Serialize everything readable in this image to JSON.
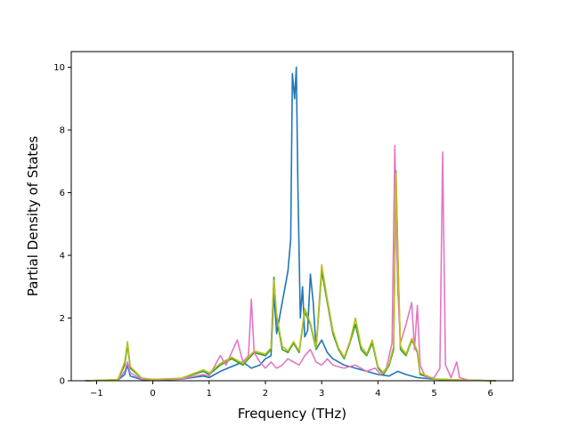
{
  "chart_data": {
    "type": "line",
    "xlabel": "Frequency (THz)",
    "ylabel": "Partial Density of States",
    "xlim": [
      -1.45,
      6.4
    ],
    "ylim": [
      0,
      10.5
    ],
    "xticks": [
      -1,
      0,
      1,
      2,
      3,
      4,
      5,
      6
    ],
    "yticks": [
      0,
      2,
      4,
      6,
      8,
      10
    ],
    "grid": false,
    "legend": "none",
    "series": [
      {
        "color": "#1f77b4",
        "points": [
          [
            -1.2,
            0
          ],
          [
            -0.62,
            0.02
          ],
          [
            -0.5,
            0.2
          ],
          [
            -0.45,
            0.5
          ],
          [
            -0.4,
            0.15
          ],
          [
            -0.2,
            0.04
          ],
          [
            0,
            0.02
          ],
          [
            0.5,
            0.05
          ],
          [
            0.9,
            0.15
          ],
          [
            1.0,
            0.1
          ],
          [
            1.2,
            0.3
          ],
          [
            1.4,
            0.45
          ],
          [
            1.6,
            0.6
          ],
          [
            1.75,
            0.4
          ],
          [
            1.9,
            0.5
          ],
          [
            2.0,
            0.7
          ],
          [
            2.1,
            0.8
          ],
          [
            2.15,
            2.8
          ],
          [
            2.2,
            1.5
          ],
          [
            2.3,
            2.5
          ],
          [
            2.35,
            3.0
          ],
          [
            2.4,
            3.5
          ],
          [
            2.45,
            4.5
          ],
          [
            2.48,
            9.8
          ],
          [
            2.52,
            9.0
          ],
          [
            2.55,
            10.0
          ],
          [
            2.58,
            6.0
          ],
          [
            2.62,
            2.0
          ],
          [
            2.66,
            3.0
          ],
          [
            2.7,
            1.4
          ],
          [
            2.75,
            1.6
          ],
          [
            2.8,
            3.4
          ],
          [
            2.85,
            2.5
          ],
          [
            2.9,
            1.0
          ],
          [
            3.0,
            1.3
          ],
          [
            3.1,
            0.9
          ],
          [
            3.2,
            0.7
          ],
          [
            3.4,
            0.5
          ],
          [
            3.6,
            0.4
          ],
          [
            3.8,
            0.3
          ],
          [
            4.0,
            0.2
          ],
          [
            4.2,
            0.15
          ],
          [
            4.35,
            0.3
          ],
          [
            4.5,
            0.2
          ],
          [
            4.7,
            0.1
          ],
          [
            5.0,
            0.05
          ],
          [
            5.5,
            0.02
          ],
          [
            6.1,
            0
          ]
        ]
      },
      {
        "color": "#2ca02c",
        "points": [
          [
            -1.2,
            0
          ],
          [
            -0.62,
            0.03
          ],
          [
            -0.5,
            0.5
          ],
          [
            -0.45,
            1.15
          ],
          [
            -0.4,
            0.4
          ],
          [
            -0.2,
            0.08
          ],
          [
            0,
            0.04
          ],
          [
            0.5,
            0.07
          ],
          [
            0.9,
            0.3
          ],
          [
            1.0,
            0.2
          ],
          [
            1.2,
            0.5
          ],
          [
            1.4,
            0.7
          ],
          [
            1.6,
            0.5
          ],
          [
            1.8,
            0.9
          ],
          [
            2.0,
            0.8
          ],
          [
            2.1,
            1.0
          ],
          [
            2.15,
            3.3
          ],
          [
            2.2,
            2.0
          ],
          [
            2.3,
            1.0
          ],
          [
            2.4,
            0.9
          ],
          [
            2.5,
            1.2
          ],
          [
            2.6,
            0.9
          ],
          [
            2.7,
            2.2
          ],
          [
            2.8,
            1.8
          ],
          [
            2.9,
            1.0
          ],
          [
            3.0,
            3.5
          ],
          [
            3.1,
            2.5
          ],
          [
            3.2,
            1.5
          ],
          [
            3.3,
            1.0
          ],
          [
            3.4,
            0.7
          ],
          [
            3.5,
            1.2
          ],
          [
            3.6,
            1.8
          ],
          [
            3.7,
            1.0
          ],
          [
            3.8,
            0.8
          ],
          [
            3.9,
            1.2
          ],
          [
            4.0,
            0.4
          ],
          [
            4.1,
            0.2
          ],
          [
            4.2,
            0.5
          ],
          [
            4.28,
            1.0
          ],
          [
            4.32,
            6.7
          ],
          [
            4.36,
            3.5
          ],
          [
            4.4,
            1.0
          ],
          [
            4.5,
            0.8
          ],
          [
            4.6,
            1.3
          ],
          [
            4.7,
            0.9
          ],
          [
            4.75,
            0.2
          ],
          [
            5.0,
            0.05
          ],
          [
            5.5,
            0.02
          ],
          [
            6.1,
            0
          ]
        ]
      },
      {
        "color": "#e377c2",
        "points": [
          [
            -1.2,
            0
          ],
          [
            -0.62,
            0.03
          ],
          [
            -0.5,
            0.3
          ],
          [
            -0.45,
            0.6
          ],
          [
            -0.4,
            0.25
          ],
          [
            -0.2,
            0.06
          ],
          [
            0,
            0.03
          ],
          [
            0.5,
            0.06
          ],
          [
            0.9,
            0.2
          ],
          [
            1.0,
            0.15
          ],
          [
            1.2,
            0.8
          ],
          [
            1.3,
            0.5
          ],
          [
            1.5,
            1.3
          ],
          [
            1.6,
            0.6
          ],
          [
            1.7,
            0.8
          ],
          [
            1.75,
            2.6
          ],
          [
            1.8,
            0.9
          ],
          [
            1.9,
            0.6
          ],
          [
            2.0,
            0.4
          ],
          [
            2.1,
            0.6
          ],
          [
            2.2,
            0.4
          ],
          [
            2.3,
            0.5
          ],
          [
            2.4,
            0.7
          ],
          [
            2.5,
            0.6
          ],
          [
            2.6,
            0.5
          ],
          [
            2.7,
            0.8
          ],
          [
            2.8,
            1.0
          ],
          [
            2.9,
            0.6
          ],
          [
            3.0,
            0.5
          ],
          [
            3.1,
            0.7
          ],
          [
            3.2,
            0.5
          ],
          [
            3.4,
            0.4
          ],
          [
            3.6,
            0.5
          ],
          [
            3.8,
            0.3
          ],
          [
            3.95,
            0.4
          ],
          [
            4.05,
            0.2
          ],
          [
            4.15,
            0.4
          ],
          [
            4.25,
            1.2
          ],
          [
            4.3,
            7.5
          ],
          [
            4.35,
            3.0
          ],
          [
            4.4,
            1.2
          ],
          [
            4.5,
            1.8
          ],
          [
            4.6,
            2.5
          ],
          [
            4.65,
            1.0
          ],
          [
            4.7,
            2.4
          ],
          [
            4.75,
            0.5
          ],
          [
            4.85,
            0.1
          ],
          [
            5.0,
            0.1
          ],
          [
            5.1,
            0.4
          ],
          [
            5.15,
            7.3
          ],
          [
            5.2,
            0.5
          ],
          [
            5.3,
            0.1
          ],
          [
            5.4,
            0.6
          ],
          [
            5.45,
            0.1
          ],
          [
            5.6,
            0.02
          ],
          [
            6.1,
            0
          ]
        ]
      },
      {
        "color": "#bcbd22",
        "points": [
          [
            -1.2,
            0
          ],
          [
            -0.62,
            0.04
          ],
          [
            -0.5,
            0.6
          ],
          [
            -0.45,
            1.25
          ],
          [
            -0.4,
            0.45
          ],
          [
            -0.2,
            0.09
          ],
          [
            0,
            0.04
          ],
          [
            0.5,
            0.08
          ],
          [
            0.9,
            0.35
          ],
          [
            1.0,
            0.25
          ],
          [
            1.2,
            0.55
          ],
          [
            1.4,
            0.75
          ],
          [
            1.6,
            0.55
          ],
          [
            1.8,
            0.95
          ],
          [
            2.0,
            0.85
          ],
          [
            2.1,
            1.05
          ],
          [
            2.15,
            3.2
          ],
          [
            2.2,
            2.1
          ],
          [
            2.3,
            1.1
          ],
          [
            2.4,
            0.95
          ],
          [
            2.5,
            1.25
          ],
          [
            2.6,
            0.95
          ],
          [
            2.7,
            2.3
          ],
          [
            2.8,
            1.85
          ],
          [
            2.9,
            1.05
          ],
          [
            3.0,
            3.7
          ],
          [
            3.1,
            2.6
          ],
          [
            3.2,
            1.6
          ],
          [
            3.3,
            1.05
          ],
          [
            3.4,
            0.75
          ],
          [
            3.5,
            1.25
          ],
          [
            3.6,
            2.0
          ],
          [
            3.7,
            1.1
          ],
          [
            3.8,
            0.85
          ],
          [
            3.9,
            1.3
          ],
          [
            4.0,
            0.45
          ],
          [
            4.1,
            0.25
          ],
          [
            4.2,
            0.55
          ],
          [
            4.28,
            1.1
          ],
          [
            4.32,
            6.6
          ],
          [
            4.36,
            3.6
          ],
          [
            4.4,
            1.1
          ],
          [
            4.5,
            0.85
          ],
          [
            4.6,
            1.35
          ],
          [
            4.7,
            0.95
          ],
          [
            4.75,
            0.25
          ],
          [
            5.0,
            0.06
          ],
          [
            5.5,
            0.02
          ],
          [
            6.1,
            0
          ]
        ]
      }
    ]
  }
}
